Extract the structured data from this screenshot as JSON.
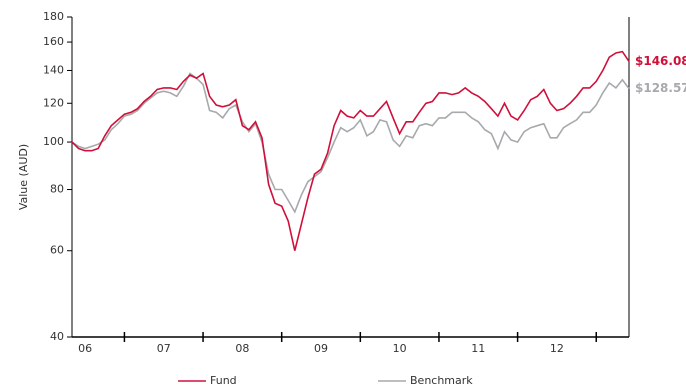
{
  "chart_data": {
    "type": "line",
    "y_label": "Value (AUD)",
    "log_scale": true,
    "ylim": [
      40,
      180
    ],
    "yticks": [
      40,
      60,
      80,
      100,
      120,
      140,
      160,
      180
    ],
    "xlim": [
      0,
      85
    ],
    "xticks": [
      {
        "value": 2,
        "label": "06"
      },
      {
        "value": 14,
        "label": "07"
      },
      {
        "value": 26,
        "label": "08"
      },
      {
        "value": 38,
        "label": "09"
      },
      {
        "value": 50,
        "label": "10"
      },
      {
        "value": 62,
        "label": "11"
      },
      {
        "value": 74,
        "label": "12"
      }
    ],
    "x_tick_marks": [
      8,
      20,
      32,
      44,
      56,
      68,
      80
    ],
    "x": [
      0,
      1,
      2,
      3,
      4,
      5,
      6,
      7,
      8,
      9,
      10,
      11,
      12,
      13,
      14,
      15,
      16,
      17,
      18,
      19,
      20,
      21,
      22,
      23,
      24,
      25,
      26,
      27,
      28,
      29,
      30,
      31,
      32,
      33,
      34,
      35,
      36,
      37,
      38,
      39,
      40,
      41,
      42,
      43,
      44,
      45,
      46,
      47,
      48,
      49,
      50,
      51,
      52,
      53,
      54,
      55,
      56,
      57,
      58,
      59,
      60,
      61,
      62,
      63,
      64,
      65,
      66,
      67,
      68,
      69,
      70,
      71,
      72,
      73,
      74,
      75,
      76,
      77,
      78,
      79,
      80,
      81,
      82,
      83,
      84,
      85
    ],
    "series": [
      {
        "name": "Fund",
        "color": "#d0103a",
        "end_label": "$146.08",
        "values": [
          100,
          97,
          96,
          96,
          97,
          103,
          108,
          111,
          114,
          115,
          117,
          121,
          124,
          128,
          129,
          129,
          128,
          133,
          137,
          135,
          138,
          124,
          119,
          118,
          119,
          122,
          108,
          106,
          110,
          102,
          82,
          75,
          74,
          69,
          60,
          68,
          77,
          86,
          88,
          95,
          108,
          116,
          113,
          112,
          116,
          113,
          113,
          117,
          121,
          112,
          104,
          110,
          110,
          115,
          120,
          121,
          126,
          126,
          125,
          126,
          129,
          126,
          124,
          121,
          117,
          113,
          120,
          113,
          111,
          116,
          122,
          124,
          128,
          120,
          116,
          117,
          120,
          124,
          129,
          129,
          133,
          140,
          149,
          152,
          153,
          146.08
        ]
      },
      {
        "name": "Benchmark",
        "color": "#a7a9ac",
        "end_label": "$128.57",
        "values": [
          100,
          98,
          97,
          98,
          99,
          101,
          106,
          109,
          113,
          114,
          116,
          120,
          123,
          126,
          127,
          126,
          124,
          130,
          138,
          135,
          131,
          116,
          115,
          112,
          117,
          119,
          110,
          105,
          109,
          100,
          86,
          80,
          80,
          76,
          72,
          78,
          83,
          85,
          87,
          93,
          100,
          107,
          105,
          107,
          111,
          103,
          105,
          111,
          110,
          101,
          98,
          103,
          102,
          108,
          109,
          108,
          112,
          112,
          115,
          115,
          115,
          112,
          110,
          106,
          104,
          97,
          105,
          101,
          100,
          105,
          107,
          108,
          109,
          102,
          102,
          107,
          109,
          111,
          115,
          115,
          119,
          126,
          132,
          129,
          134,
          128.57
        ]
      }
    ]
  }
}
